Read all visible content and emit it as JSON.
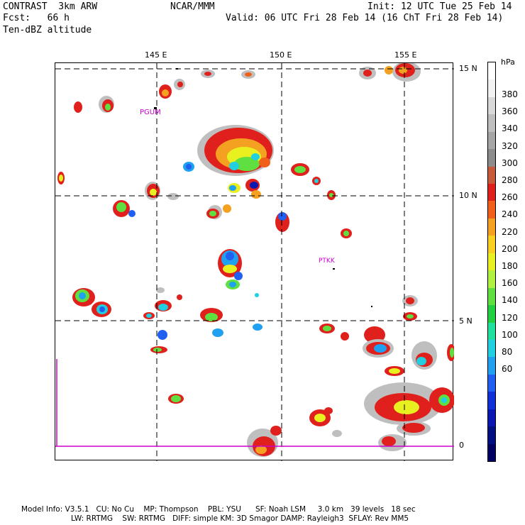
{
  "header": {
    "line1_left": "CONTRAST  3km ARW",
    "line1_center": "NCAR/MMM",
    "line1_right": "Init: 12 UTC Tue 25 Feb 14",
    "line2_left": "Fcst:   66 h",
    "line2_right": "Valid: 06 UTC Fri 28 Feb 14 (16 ChT Fri 28 Feb 14)",
    "line3_left": "Ten-dBZ altitude"
  },
  "map": {
    "lon_labels": [
      "145 E",
      "150 E",
      "155 E"
    ],
    "lat_labels": [
      "15 N",
      "10 N",
      "5 N",
      "0"
    ],
    "stations": [
      "PGUM",
      "PTKK"
    ],
    "station_color": "#cc00cc"
  },
  "colorbar": {
    "unit": "hPa",
    "tick_labels": [
      "380",
      "360",
      "340",
      "320",
      "300",
      "280",
      "260",
      "240",
      "220",
      "200",
      "180",
      "160",
      "140",
      "120",
      "100",
      "80",
      "60"
    ],
    "colors": [
      "#ffffff",
      "#f2f2f2",
      "#d9d9d9",
      "#bfbfbf",
      "#a6a6a6",
      "#8c8c8c",
      "#c85a3c",
      "#e0201c",
      "#f06018",
      "#f4a020",
      "#f8d020",
      "#e8f020",
      "#b0f040",
      "#60e040",
      "#20d040",
      "#20e0a0",
      "#20d0e0",
      "#20a0f0",
      "#2060f0",
      "#1030d8",
      "#0818b0",
      "#001080",
      "#000060"
    ]
  },
  "footer": {
    "line1": "Model Info: V3.5.1   CU: No Cu    MP: Thompson    PBL: YSU      SF: Noah LSM     3.0 km   39 levels   18 sec",
    "line2": "LW: RRTMG    SW: RRTMG   DIFF: simple KM: 3D Smagor DAMP: Rayleigh3  SFLAY: Rev MM5"
  }
}
